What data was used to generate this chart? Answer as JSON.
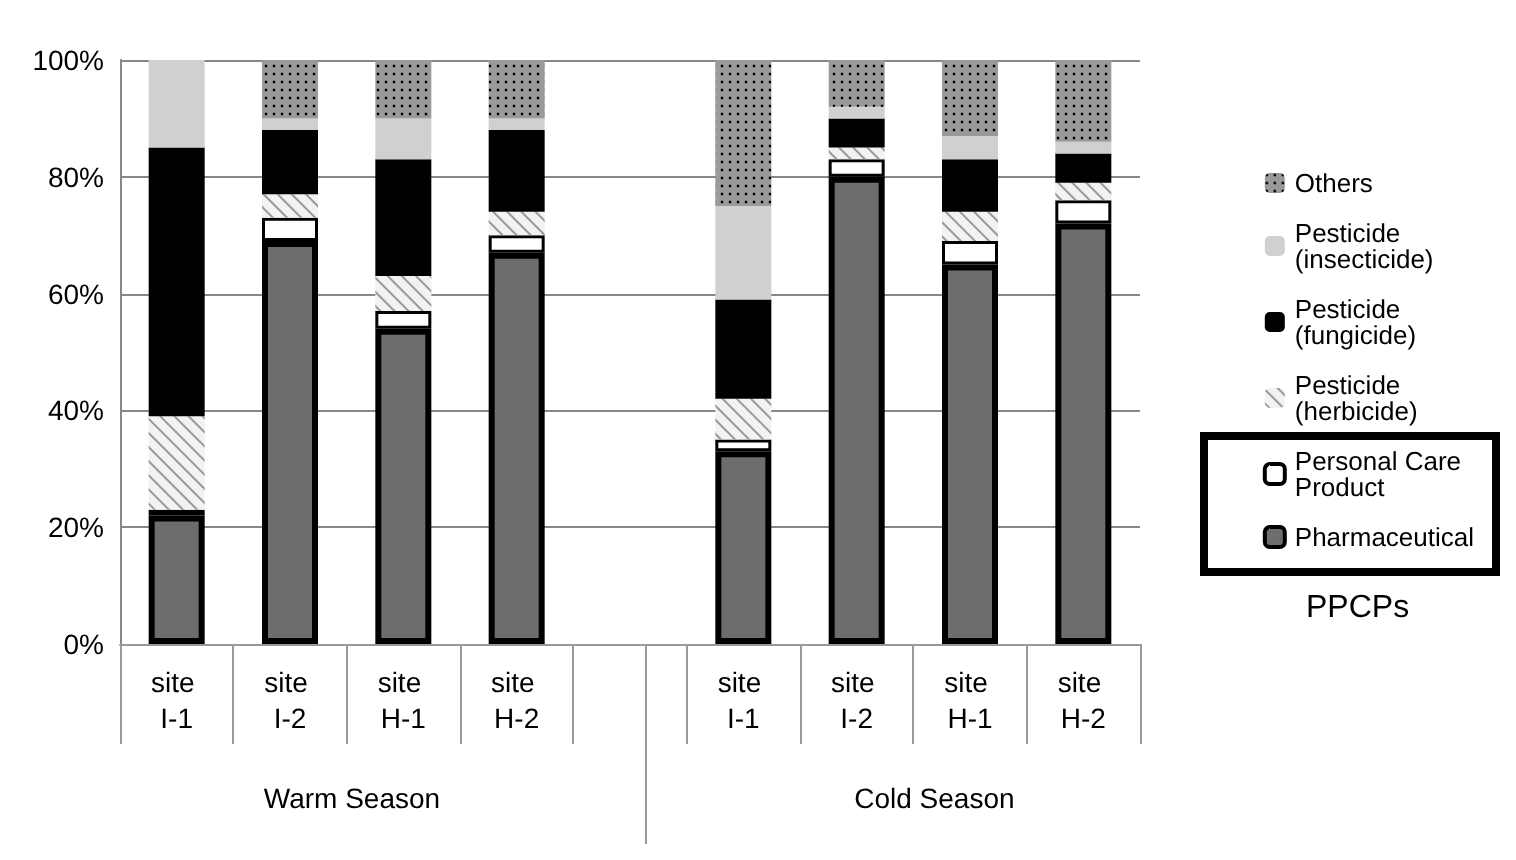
{
  "chart_data": {
    "type": "bar",
    "stacked": true,
    "categories": [
      "site I-1",
      "site I-2",
      "site H-1",
      "site H-2",
      null,
      "site I-1",
      "site I-2",
      "site H-1",
      "site H-2"
    ],
    "series": [
      {
        "name": "Pharmaceutical",
        "color": "#6d6d6d",
        "values": [
          22,
          69,
          54,
          67,
          null,
          33,
          80,
          65,
          72
        ]
      },
      {
        "name": "Personal Care Product",
        "color": "#ffffff",
        "values": [
          1,
          4,
          3,
          3,
          null,
          2,
          3,
          4,
          4
        ]
      },
      {
        "name": "Pesticide (herbicide)",
        "color": "#f2f2f2",
        "values": [
          16,
          4,
          6,
          4,
          null,
          7,
          2,
          5,
          3
        ]
      },
      {
        "name": "Pesticide (fungicide)",
        "color": "#000000",
        "values": [
          46,
          11,
          20,
          14,
          null,
          17,
          5,
          9,
          5
        ]
      },
      {
        "name": "Pesticide (insecticide)",
        "color": "#d0d0d0",
        "values": [
          15,
          2,
          7,
          2,
          null,
          16,
          2,
          4,
          2
        ]
      },
      {
        "name": "Others",
        "color": "#9a9a9a",
        "values": [
          0,
          10,
          10,
          10,
          null,
          25,
          8,
          13,
          14
        ]
      }
    ],
    "ylim": [
      0,
      100
    ],
    "yticks": [
      {
        "value": 0,
        "label": "0%"
      },
      {
        "value": 20,
        "label": "20%"
      },
      {
        "value": 40,
        "label": "40%"
      },
      {
        "value": 60,
        "label": "60%"
      },
      {
        "value": 80,
        "label": "80%"
      },
      {
        "value": 100,
        "label": "100%"
      }
    ],
    "grid": "y",
    "legend": "right",
    "annotations": [
      "Warm Season",
      "Cold Season",
      "PPCPs"
    ]
  }
}
